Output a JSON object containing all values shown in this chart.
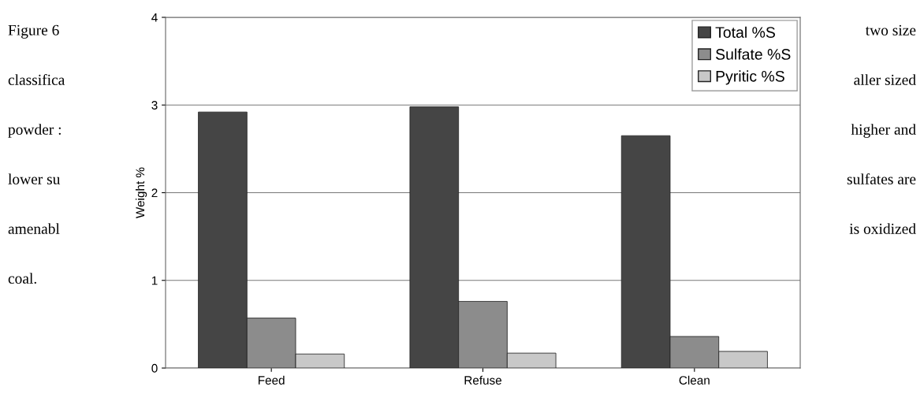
{
  "chart_data": {
    "type": "bar",
    "ylabel": "Weight %",
    "categories": [
      "Feed",
      "Refuse",
      "Clean"
    ],
    "series": [
      {
        "name": "Total %S",
        "color": "#454545",
        "values": [
          2.92,
          2.98,
          2.65
        ]
      },
      {
        "name": "Sulfate %S",
        "color": "#8c8c8c",
        "values": [
          0.57,
          0.76,
          0.36
        ]
      },
      {
        "name": "Pyritic %S",
        "color": "#c8c8c8",
        "values": [
          0.16,
          0.17,
          0.19
        ]
      }
    ],
    "ylim": [
      0,
      4
    ],
    "yticks": [
      0,
      1,
      2,
      3,
      4
    ],
    "grid": "y",
    "legend": "top right",
    "annotations": [
      "Figure 6",
      "two size",
      "classifica",
      "aller sized",
      "powder :",
      "higher and",
      "lower su",
      "sulfates are",
      "amenabl",
      "is oxidized",
      "coal."
    ]
  }
}
